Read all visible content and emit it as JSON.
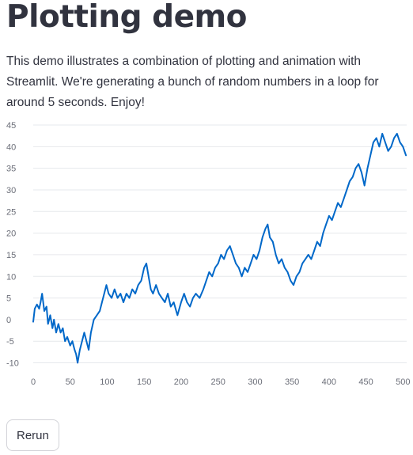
{
  "header": {
    "title": "Plotting demo"
  },
  "description": "This demo illustrates a combination of plotting and animation with Streamlit. We're generating a bunch of random numbers in a loop for around 5 seconds. Enjoy!",
  "actions": {
    "rerun_label": "Rerun"
  },
  "chart_data": {
    "type": "line",
    "xlim": [
      0,
      505
    ],
    "ylim": [
      -11,
      45
    ],
    "x_ticks": [
      0,
      50,
      100,
      150,
      200,
      250,
      300,
      350,
      400,
      450,
      500
    ],
    "y_ticks": [
      -10,
      -5,
      0,
      5,
      10,
      15,
      20,
      25,
      30,
      35,
      40,
      45
    ],
    "grid": "horizontal",
    "line_color": "#0068c9",
    "series": [
      {
        "points": [
          [
            0,
            -0.5
          ],
          [
            2,
            2.5
          ],
          [
            5,
            3.5
          ],
          [
            8,
            2.5
          ],
          [
            10,
            4
          ],
          [
            12,
            6
          ],
          [
            15,
            2
          ],
          [
            18,
            3
          ],
          [
            20,
            -1
          ],
          [
            23,
            1
          ],
          [
            26,
            -2
          ],
          [
            28,
            0
          ],
          [
            31,
            -3
          ],
          [
            34,
            -1
          ],
          [
            37,
            -3
          ],
          [
            40,
            -2
          ],
          [
            43,
            -5
          ],
          [
            46,
            -4
          ],
          [
            50,
            -6
          ],
          [
            53,
            -5
          ],
          [
            56,
            -7
          ],
          [
            58,
            -8
          ],
          [
            60,
            -10
          ],
          [
            63,
            -7
          ],
          [
            66,
            -5
          ],
          [
            69,
            -3
          ],
          [
            72,
            -5
          ],
          [
            75,
            -7
          ],
          [
            78,
            -3
          ],
          [
            82,
            0
          ],
          [
            86,
            1
          ],
          [
            90,
            2
          ],
          [
            93,
            4
          ],
          [
            96,
            6
          ],
          [
            99,
            8
          ],
          [
            102,
            6
          ],
          [
            106,
            5
          ],
          [
            110,
            7
          ],
          [
            114,
            5
          ],
          [
            118,
            6
          ],
          [
            122,
            4
          ],
          [
            126,
            6
          ],
          [
            130,
            5
          ],
          [
            134,
            7
          ],
          [
            138,
            6
          ],
          [
            142,
            8
          ],
          [
            146,
            9
          ],
          [
            150,
            12
          ],
          [
            153,
            13
          ],
          [
            156,
            10
          ],
          [
            159,
            7
          ],
          [
            162,
            6
          ],
          [
            166,
            8
          ],
          [
            170,
            6
          ],
          [
            174,
            5
          ],
          [
            178,
            4
          ],
          [
            182,
            6
          ],
          [
            186,
            3
          ],
          [
            190,
            4
          ],
          [
            195,
            1
          ],
          [
            200,
            4
          ],
          [
            204,
            6
          ],
          [
            208,
            4
          ],
          [
            212,
            3
          ],
          [
            216,
            5
          ],
          [
            220,
            6
          ],
          [
            225,
            5
          ],
          [
            230,
            7
          ],
          [
            234,
            9
          ],
          [
            238,
            11
          ],
          [
            242,
            10
          ],
          [
            246,
            12
          ],
          [
            250,
            13
          ],
          [
            254,
            15
          ],
          [
            258,
            14
          ],
          [
            262,
            16
          ],
          [
            266,
            17
          ],
          [
            270,
            15
          ],
          [
            274,
            13
          ],
          [
            278,
            12
          ],
          [
            282,
            10
          ],
          [
            286,
            12
          ],
          [
            290,
            11
          ],
          [
            294,
            13
          ],
          [
            298,
            15
          ],
          [
            302,
            14
          ],
          [
            306,
            16
          ],
          [
            310,
            19
          ],
          [
            314,
            21
          ],
          [
            317,
            22
          ],
          [
            320,
            19
          ],
          [
            324,
            18
          ],
          [
            328,
            15
          ],
          [
            332,
            13
          ],
          [
            336,
            14
          ],
          [
            340,
            12
          ],
          [
            344,
            11
          ],
          [
            348,
            9
          ],
          [
            352,
            8
          ],
          [
            356,
            10
          ],
          [
            360,
            11
          ],
          [
            364,
            13
          ],
          [
            368,
            14
          ],
          [
            372,
            15
          ],
          [
            376,
            14
          ],
          [
            380,
            16
          ],
          [
            384,
            18
          ],
          [
            388,
            17
          ],
          [
            392,
            20
          ],
          [
            396,
            22
          ],
          [
            400,
            24
          ],
          [
            404,
            23
          ],
          [
            408,
            25
          ],
          [
            412,
            27
          ],
          [
            416,
            26
          ],
          [
            420,
            28
          ],
          [
            424,
            30
          ],
          [
            428,
            32
          ],
          [
            432,
            33
          ],
          [
            436,
            35
          ],
          [
            440,
            36
          ],
          [
            444,
            34
          ],
          [
            448,
            31
          ],
          [
            452,
            35
          ],
          [
            456,
            38
          ],
          [
            460,
            41
          ],
          [
            464,
            42
          ],
          [
            468,
            40
          ],
          [
            472,
            43
          ],
          [
            476,
            41
          ],
          [
            480,
            39
          ],
          [
            484,
            40
          ],
          [
            488,
            42
          ],
          [
            492,
            43
          ],
          [
            496,
            41
          ],
          [
            500,
            40
          ],
          [
            504,
            38
          ]
        ]
      }
    ]
  }
}
